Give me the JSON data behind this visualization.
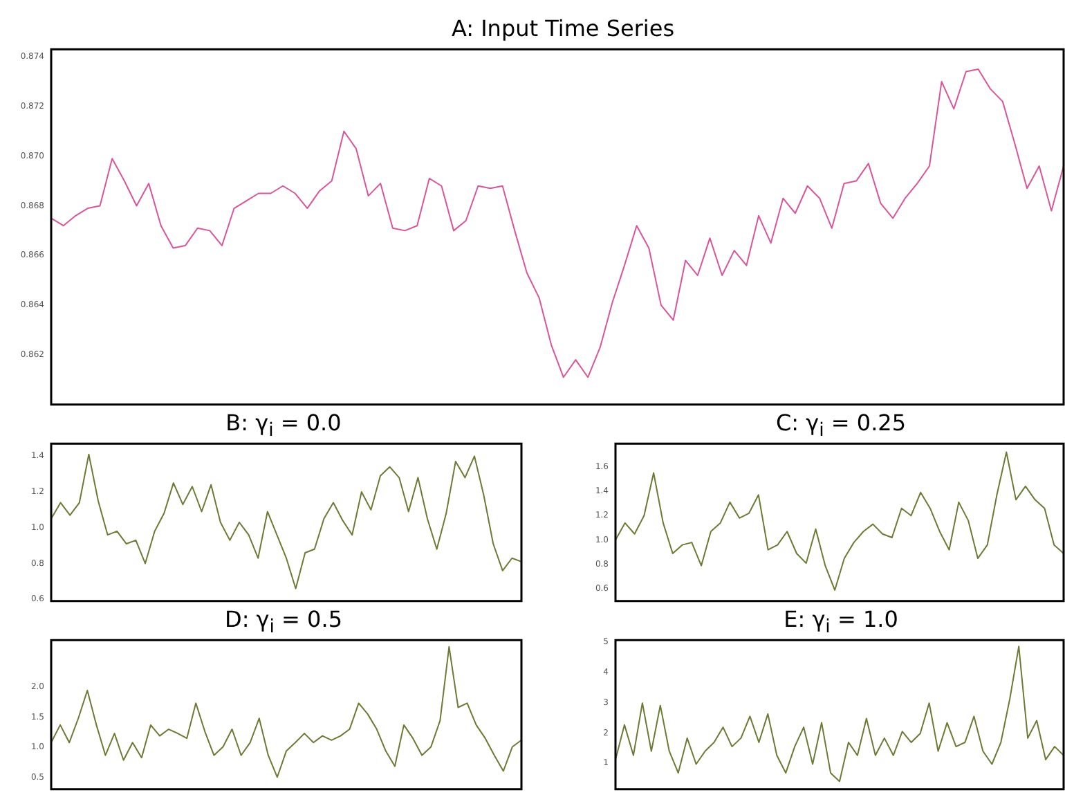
{
  "chart_data": [
    {
      "type": "line",
      "title": "A: Input Time Series",
      "color": "#d9559a",
      "tick_labels": "y",
      "ylim": [
        0.86,
        0.8743
      ],
      "yticks": [
        0.862,
        0.864,
        0.866,
        0.868,
        {
          "value": 0.87,
          "label": "0.870"
        },
        0.872,
        0.874
      ],
      "categories": [
        null,
        null,
        null,
        null,
        null,
        null,
        null,
        null,
        null,
        null,
        null,
        null,
        null,
        null,
        null,
        null,
        null,
        null,
        null,
        null,
        null,
        null,
        null,
        null,
        null,
        null,
        null,
        null,
        null,
        null,
        null,
        null,
        null,
        null,
        null,
        null,
        null,
        null,
        null,
        null,
        null,
        null,
        null,
        null,
        null,
        null,
        null,
        null,
        null,
        null,
        null,
        null,
        null,
        null,
        null,
        null,
        null,
        null,
        null,
        null,
        null,
        null,
        null,
        null,
        null,
        null,
        null,
        null,
        null,
        null,
        null,
        null,
        null,
        null,
        null,
        null,
        null,
        null,
        null,
        null,
        null,
        null,
        null,
        null
      ],
      "values": [
        0.8675,
        0.8672,
        0.8676,
        0.8679,
        0.868,
        0.8699,
        0.869,
        0.868,
        0.8689,
        0.8672,
        0.8663,
        0.8664,
        0.8671,
        0.867,
        0.8664,
        0.8679,
        0.8682,
        0.8685,
        0.8685,
        0.8688,
        0.8685,
        0.8679,
        0.8686,
        0.869,
        0.871,
        0.8703,
        0.8684,
        0.8689,
        0.8671,
        0.867,
        0.8672,
        0.8691,
        0.8688,
        0.867,
        0.8674,
        0.8688,
        0.8687,
        0.8688,
        0.867,
        0.8653,
        0.8643,
        0.8624,
        0.8611,
        0.8618,
        0.8611,
        0.8623,
        0.8641,
        0.8656,
        0.8672,
        0.8663,
        0.864,
        0.8634,
        0.8658,
        0.8652,
        0.8667,
        0.8652,
        0.8662,
        0.8656,
        0.8676,
        0.8665,
        0.8683,
        0.8677,
        0.8688,
        0.8683,
        0.8671,
        0.8689,
        0.869,
        0.8697,
        0.8681,
        0.8675,
        0.8683,
        0.8689,
        0.8696,
        0.873,
        0.8719,
        0.8734,
        0.8735,
        0.8727,
        0.8722,
        0.8705,
        0.8687,
        0.8696,
        0.8678,
        0.8696
      ]
    },
    {
      "type": "line",
      "title": "B: γ$_{i}$ = 0.0",
      "color": "#6b7a35",
      "tick_labels": "y",
      "ylim": [
        0.59,
        1.47
      ],
      "yticks": [
        0.6,
        0.8,
        {
          "value": 1,
          "label": "1.0"
        },
        1.2,
        1.4
      ],
      "categories": [
        null,
        null,
        null,
        null,
        null,
        null,
        null,
        null,
        null,
        null,
        null,
        null,
        null,
        null,
        null,
        null,
        null,
        null,
        null,
        null,
        null,
        null,
        null,
        null,
        null,
        null,
        null,
        null,
        null,
        null,
        null,
        null,
        null,
        null,
        null,
        null,
        null,
        null,
        null,
        null,
        null,
        null,
        null,
        null,
        null,
        null,
        null,
        null,
        null,
        null,
        null
      ],
      "values": [
        1.05,
        1.14,
        1.07,
        1.14,
        1.41,
        1.15,
        0.96,
        0.98,
        0.91,
        0.93,
        0.8,
        0.98,
        1.08,
        1.25,
        1.13,
        1.23,
        1.09,
        1.24,
        1.03,
        0.93,
        1.03,
        0.96,
        0.83,
        1.09,
        0.96,
        0.83,
        0.66,
        0.86,
        0.88,
        1.05,
        1.14,
        1.04,
        0.96,
        1.2,
        1.1,
        1.29,
        1.34,
        1.28,
        1.09,
        1.28,
        1.05,
        0.88,
        1.08,
        1.37,
        1.28,
        1.4,
        1.18,
        0.91,
        0.76,
        0.83,
        0.81
      ]
    },
    {
      "type": "line",
      "title": "C: γ$_{i}$ = 0.25",
      "color": "#6b7a35",
      "tick_labels": "y",
      "ylim": [
        0.5,
        1.79
      ],
      "yticks": [
        0.6,
        0.8,
        {
          "value": 1,
          "label": "1.0"
        },
        1.2,
        1.4,
        1.6
      ],
      "categories": [
        null,
        null,
        null,
        null,
        null,
        null,
        null,
        null,
        null,
        null,
        null,
        null,
        null,
        null,
        null,
        null,
        null,
        null,
        null,
        null,
        null,
        null,
        null,
        null,
        null,
        null,
        null,
        null,
        null,
        null,
        null,
        null,
        null,
        null,
        null,
        null,
        null,
        null,
        null,
        null,
        null,
        null,
        null,
        null,
        null,
        null,
        null,
        null
      ],
      "values": [
        1,
        1.14,
        1.05,
        1.2,
        1.55,
        1.14,
        0.89,
        0.96,
        0.98,
        0.79,
        1.07,
        1.14,
        1.31,
        1.18,
        1.22,
        1.37,
        0.92,
        0.96,
        1.07,
        0.89,
        0.81,
        1.09,
        0.79,
        0.59,
        0.85,
        0.98,
        1.07,
        1.13,
        1.05,
        1.02,
        1.26,
        1.2,
        1.39,
        1.26,
        1.07,
        0.92,
        1.31,
        1.16,
        0.85,
        0.96,
        1.37,
        1.72,
        1.33,
        1.44,
        1.33,
        1.26,
        0.96,
        0.89
      ]
    },
    {
      "type": "line",
      "title": "D: γ$_{i}$ = 0.5",
      "color": "#6b7a35",
      "tick_labels": "y",
      "ylim": [
        0.31,
        2.77
      ],
      "yticks": [
        0.5,
        {
          "value": 1,
          "label": "1.0"
        },
        1.5,
        {
          "value": 2,
          "label": "2.0"
        }
      ],
      "categories": [
        null,
        null,
        null,
        null,
        null,
        null,
        null,
        null,
        null,
        null,
        null,
        null,
        null,
        null,
        null,
        null,
        null,
        null,
        null,
        null,
        null,
        null,
        null,
        null,
        null,
        null,
        null,
        null,
        null,
        null,
        null,
        null,
        null,
        null,
        null,
        null,
        null,
        null,
        null,
        null,
        null,
        null,
        null,
        null,
        null,
        null,
        null,
        null,
        null,
        null,
        null,
        null,
        null
      ],
      "values": [
        1.08,
        1.37,
        1.08,
        1.48,
        1.94,
        1.37,
        0.87,
        1.23,
        0.79,
        1.08,
        0.83,
        1.37,
        1.19,
        1.3,
        1.23,
        1.15,
        1.73,
        1.26,
        0.87,
        1.01,
        1.3,
        0.87,
        1.08,
        1.48,
        0.87,
        0.51,
        0.94,
        1.08,
        1.23,
        1.08,
        1.19,
        1.12,
        1.19,
        1.3,
        1.73,
        1.55,
        1.3,
        0.94,
        0.69,
        1.37,
        1.15,
        0.87,
        1.01,
        1.44,
        2.66,
        1.66,
        1.73,
        1.37,
        1.15,
        0.87,
        0.61,
        1.01,
        1.12
      ]
    },
    {
      "type": "line",
      "title": "E: γ$_{i}$ = 1.0",
      "color": "#6b7a35",
      "tick_labels": "y",
      "ylim": [
        0.14,
        5.07
      ],
      "yticks": [
        1,
        2,
        3,
        4,
        5
      ],
      "categories": [
        null,
        null,
        null,
        null,
        null,
        null,
        null,
        null,
        null,
        null,
        null,
        null,
        null,
        null,
        null,
        null,
        null,
        null,
        null,
        null,
        null,
        null,
        null,
        null,
        null,
        null,
        null,
        null,
        null,
        null,
        null,
        null,
        null,
        null,
        null,
        null,
        null,
        null,
        null,
        null,
        null,
        null,
        null,
        null,
        null,
        null,
        null,
        null,
        null,
        null,
        null
      ],
      "values": [
        1.12,
        2.27,
        1.26,
        2.99,
        1.4,
        2.91,
        1.4,
        0.68,
        1.83,
        0.97,
        1.4,
        1.69,
        2.19,
        1.55,
        1.83,
        2.55,
        1.69,
        2.63,
        1.26,
        0.68,
        1.55,
        2.19,
        0.97,
        2.34,
        0.68,
        0.4,
        1.69,
        1.26,
        2.48,
        1.26,
        1.83,
        1.26,
        2.05,
        1.69,
        1.98,
        2.99,
        1.4,
        2.34,
        1.55,
        1.69,
        2.55,
        1.4,
        0.97,
        1.69,
        3.13,
        4.86,
        1.83,
        2.41,
        1.12,
        1.55,
        1.26
      ]
    }
  ]
}
